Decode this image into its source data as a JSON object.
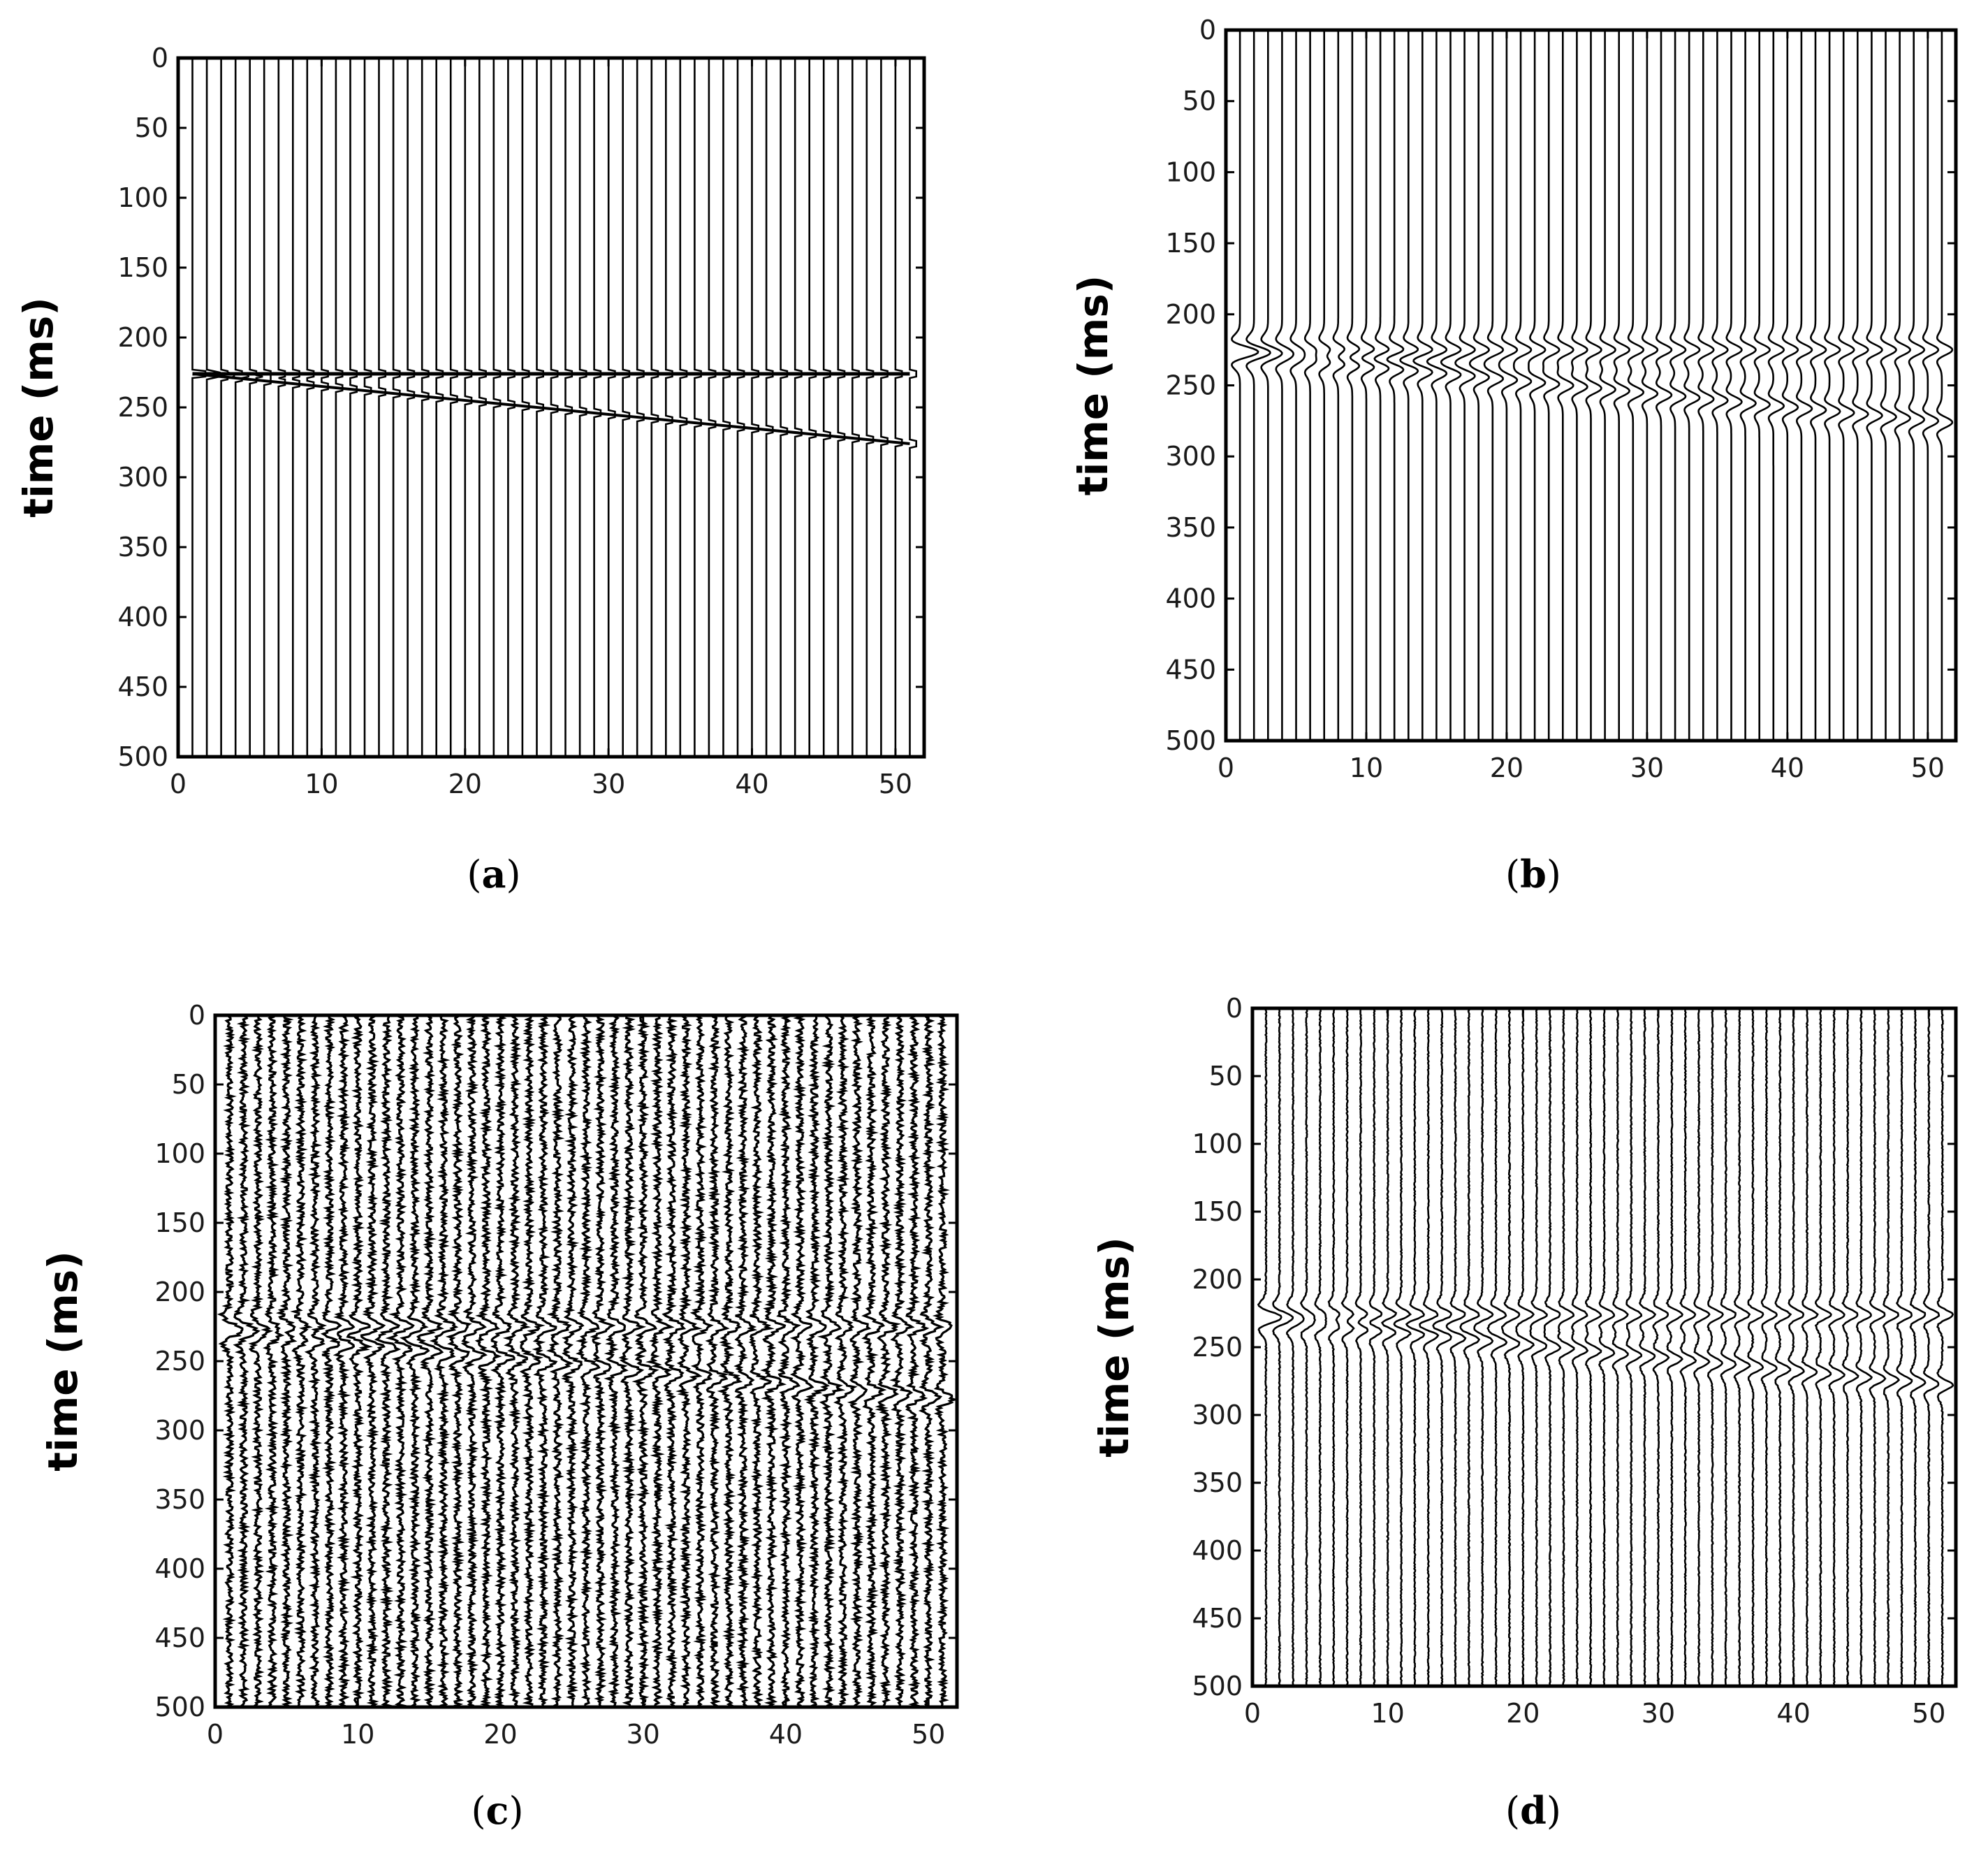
{
  "chart_data": [
    {
      "type": "seismic-wiggle",
      "panel_label": "a",
      "ylabel": "time (ms)",
      "xlim": [
        0,
        52
      ],
      "ylim": [
        0,
        500
      ],
      "y_inverted": true,
      "xticks": [
        0,
        10,
        20,
        30,
        40,
        50
      ],
      "yticks": [
        0,
        50,
        100,
        150,
        200,
        250,
        300,
        350,
        400,
        450,
        500
      ],
      "traces": {
        "first": 1,
        "last": 51,
        "step": 1
      },
      "events": [
        {
          "kind": "flat",
          "t_first": 226,
          "t_last": 226
        },
        {
          "kind": "dipping",
          "t_first": 226,
          "t_last": 276
        }
      ],
      "rendering": "spikes",
      "noise": "none"
    },
    {
      "type": "seismic-wiggle",
      "panel_label": "b",
      "ylabel": "time (ms)",
      "xlim": [
        0,
        52
      ],
      "ylim": [
        0,
        500
      ],
      "y_inverted": true,
      "xticks": [
        0,
        10,
        20,
        30,
        40,
        50
      ],
      "yticks": [
        0,
        50,
        100,
        150,
        200,
        250,
        300,
        350,
        400,
        450,
        500
      ],
      "traces": {
        "first": 1,
        "last": 51,
        "step": 1
      },
      "events": [
        {
          "kind": "flat",
          "t_first": 225,
          "t_last": 225
        },
        {
          "kind": "dipping",
          "t_first": 228,
          "t_last": 276
        }
      ],
      "rendering": "wavelets",
      "noise": "none"
    },
    {
      "type": "seismic-wiggle",
      "panel_label": "c",
      "ylabel": "time (ms)",
      "xlim": [
        0,
        52
      ],
      "ylim": [
        0,
        500
      ],
      "y_inverted": true,
      "xticks": [
        0,
        10,
        20,
        30,
        40,
        50
      ],
      "yticks": [
        0,
        50,
        100,
        150,
        200,
        250,
        300,
        350,
        400,
        450,
        500
      ],
      "traces": {
        "first": 1,
        "last": 51,
        "step": 1
      },
      "events": [
        {
          "kind": "flat",
          "t_first": 225,
          "t_last": 225
        },
        {
          "kind": "dipping",
          "t_first": 230,
          "t_last": 277
        }
      ],
      "rendering": "wavelets",
      "noise": "strong"
    },
    {
      "type": "seismic-wiggle",
      "panel_label": "d",
      "ylabel": "time (ms)",
      "xlim": [
        0,
        52
      ],
      "ylim": [
        0,
        500
      ],
      "y_inverted": true,
      "xticks": [
        0,
        10,
        20,
        30,
        40,
        50
      ],
      "yticks": [
        0,
        50,
        100,
        150,
        200,
        250,
        300,
        350,
        400,
        450,
        500
      ],
      "traces": {
        "first": 1,
        "last": 51,
        "step": 1
      },
      "events": [
        {
          "kind": "flat",
          "t_first": 226,
          "t_last": 226
        },
        {
          "kind": "dipping",
          "t_first": 230,
          "t_last": 278
        }
      ],
      "rendering": "wavelets",
      "noise": "weak"
    }
  ],
  "colors": {
    "trace": "#000000",
    "axis": "#000000",
    "background": "#ffffff"
  }
}
